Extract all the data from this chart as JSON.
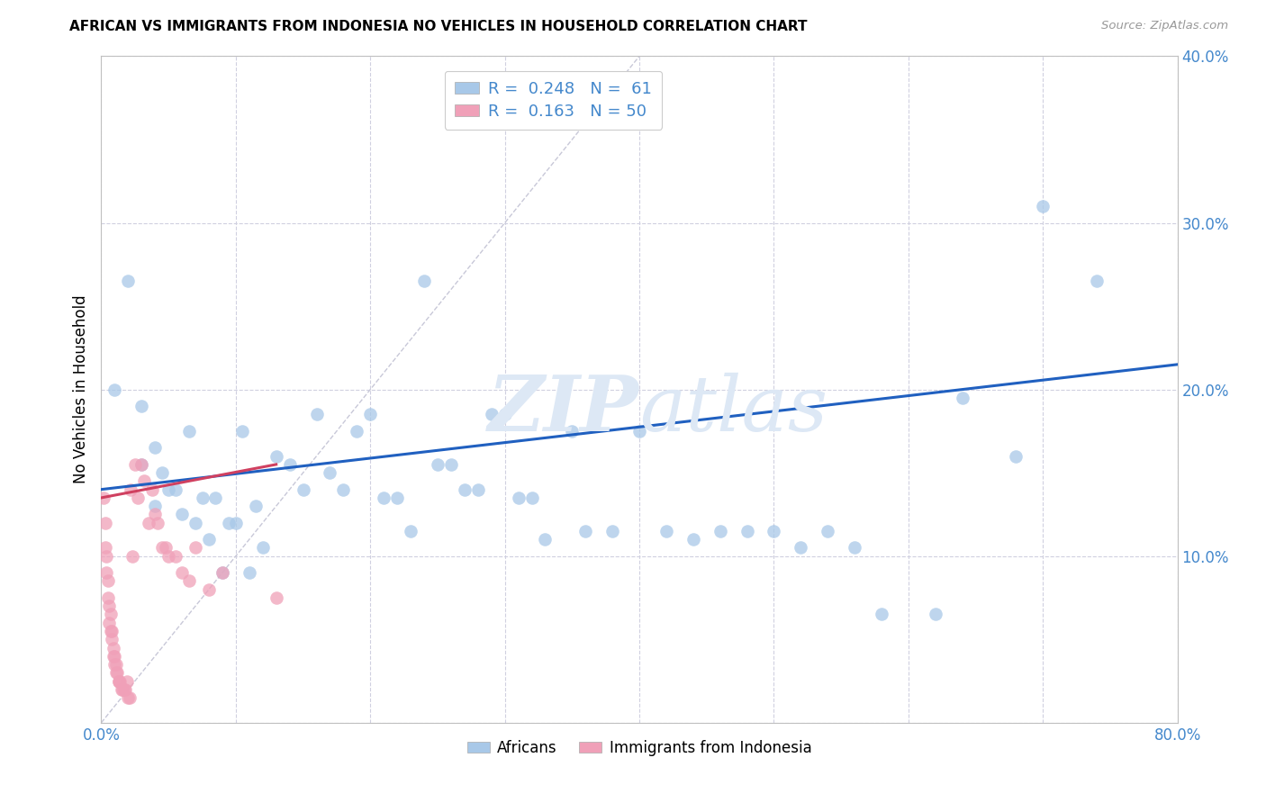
{
  "title": "AFRICAN VS IMMIGRANTS FROM INDONESIA NO VEHICLES IN HOUSEHOLD CORRELATION CHART",
  "source": "Source: ZipAtlas.com",
  "ylabel": "No Vehicles in Household",
  "xlim": [
    0.0,
    0.8
  ],
  "ylim": [
    0.0,
    0.4
  ],
  "xticks": [
    0.0,
    0.1,
    0.2,
    0.3,
    0.4,
    0.5,
    0.6,
    0.7,
    0.8
  ],
  "yticks": [
    0.0,
    0.1,
    0.2,
    0.3,
    0.4
  ],
  "xticklabels": [
    "0.0%",
    "",
    "",
    "",
    "",
    "",
    "",
    "",
    "80.0%"
  ],
  "yticklabels": [
    "",
    "10.0%",
    "20.0%",
    "30.0%",
    "40.0%"
  ],
  "legend_r_african": "0.248",
  "legend_n_african": "61",
  "legend_r_indonesia": "0.163",
  "legend_n_indonesia": "50",
  "blue_color": "#a8c8e8",
  "pink_color": "#f0a0b8",
  "line_blue": "#2060c0",
  "line_pink": "#d04060",
  "diagonal_color": "#c8c8d8",
  "tick_color": "#4488cc",
  "watermark_color": "#dde8f5",
  "africans_x": [
    0.01,
    0.02,
    0.03,
    0.03,
    0.04,
    0.04,
    0.045,
    0.05,
    0.055,
    0.06,
    0.065,
    0.07,
    0.075,
    0.08,
    0.085,
    0.09,
    0.095,
    0.1,
    0.105,
    0.11,
    0.115,
    0.12,
    0.13,
    0.14,
    0.15,
    0.16,
    0.17,
    0.18,
    0.19,
    0.2,
    0.21,
    0.22,
    0.23,
    0.24,
    0.25,
    0.26,
    0.27,
    0.28,
    0.29,
    0.3,
    0.31,
    0.32,
    0.33,
    0.35,
    0.36,
    0.38,
    0.4,
    0.42,
    0.44,
    0.46,
    0.48,
    0.5,
    0.52,
    0.54,
    0.56,
    0.58,
    0.62,
    0.64,
    0.68,
    0.7,
    0.74
  ],
  "africans_y": [
    0.2,
    0.265,
    0.19,
    0.155,
    0.13,
    0.165,
    0.15,
    0.14,
    0.14,
    0.125,
    0.175,
    0.12,
    0.135,
    0.11,
    0.135,
    0.09,
    0.12,
    0.12,
    0.175,
    0.09,
    0.13,
    0.105,
    0.16,
    0.155,
    0.14,
    0.185,
    0.15,
    0.14,
    0.175,
    0.185,
    0.135,
    0.135,
    0.115,
    0.265,
    0.155,
    0.155,
    0.14,
    0.14,
    0.185,
    0.185,
    0.135,
    0.135,
    0.11,
    0.175,
    0.115,
    0.115,
    0.175,
    0.115,
    0.11,
    0.115,
    0.115,
    0.115,
    0.105,
    0.115,
    0.105,
    0.065,
    0.065,
    0.195,
    0.16,
    0.31,
    0.265
  ],
  "indonesia_x": [
    0.002,
    0.003,
    0.003,
    0.004,
    0.004,
    0.005,
    0.005,
    0.006,
    0.006,
    0.007,
    0.007,
    0.008,
    0.008,
    0.009,
    0.009,
    0.01,
    0.01,
    0.011,
    0.011,
    0.012,
    0.013,
    0.013,
    0.014,
    0.015,
    0.016,
    0.017,
    0.018,
    0.019,
    0.02,
    0.021,
    0.022,
    0.023,
    0.025,
    0.027,
    0.03,
    0.032,
    0.035,
    0.038,
    0.04,
    0.042,
    0.045,
    0.048,
    0.05,
    0.055,
    0.06,
    0.065,
    0.07,
    0.08,
    0.09,
    0.13
  ],
  "indonesia_y": [
    0.135,
    0.12,
    0.105,
    0.1,
    0.09,
    0.085,
    0.075,
    0.07,
    0.06,
    0.065,
    0.055,
    0.055,
    0.05,
    0.045,
    0.04,
    0.04,
    0.035,
    0.035,
    0.03,
    0.03,
    0.025,
    0.025,
    0.025,
    0.02,
    0.02,
    0.02,
    0.02,
    0.025,
    0.015,
    0.015,
    0.14,
    0.1,
    0.155,
    0.135,
    0.155,
    0.145,
    0.12,
    0.14,
    0.125,
    0.12,
    0.105,
    0.105,
    0.1,
    0.1,
    0.09,
    0.085,
    0.105,
    0.08,
    0.09,
    0.075
  ],
  "blue_line_x0": 0.0,
  "blue_line_y0": 0.14,
  "blue_line_x1": 0.8,
  "blue_line_y1": 0.215,
  "pink_line_x0": 0.0,
  "pink_line_y0": 0.135,
  "pink_line_x1": 0.13,
  "pink_line_y1": 0.155
}
